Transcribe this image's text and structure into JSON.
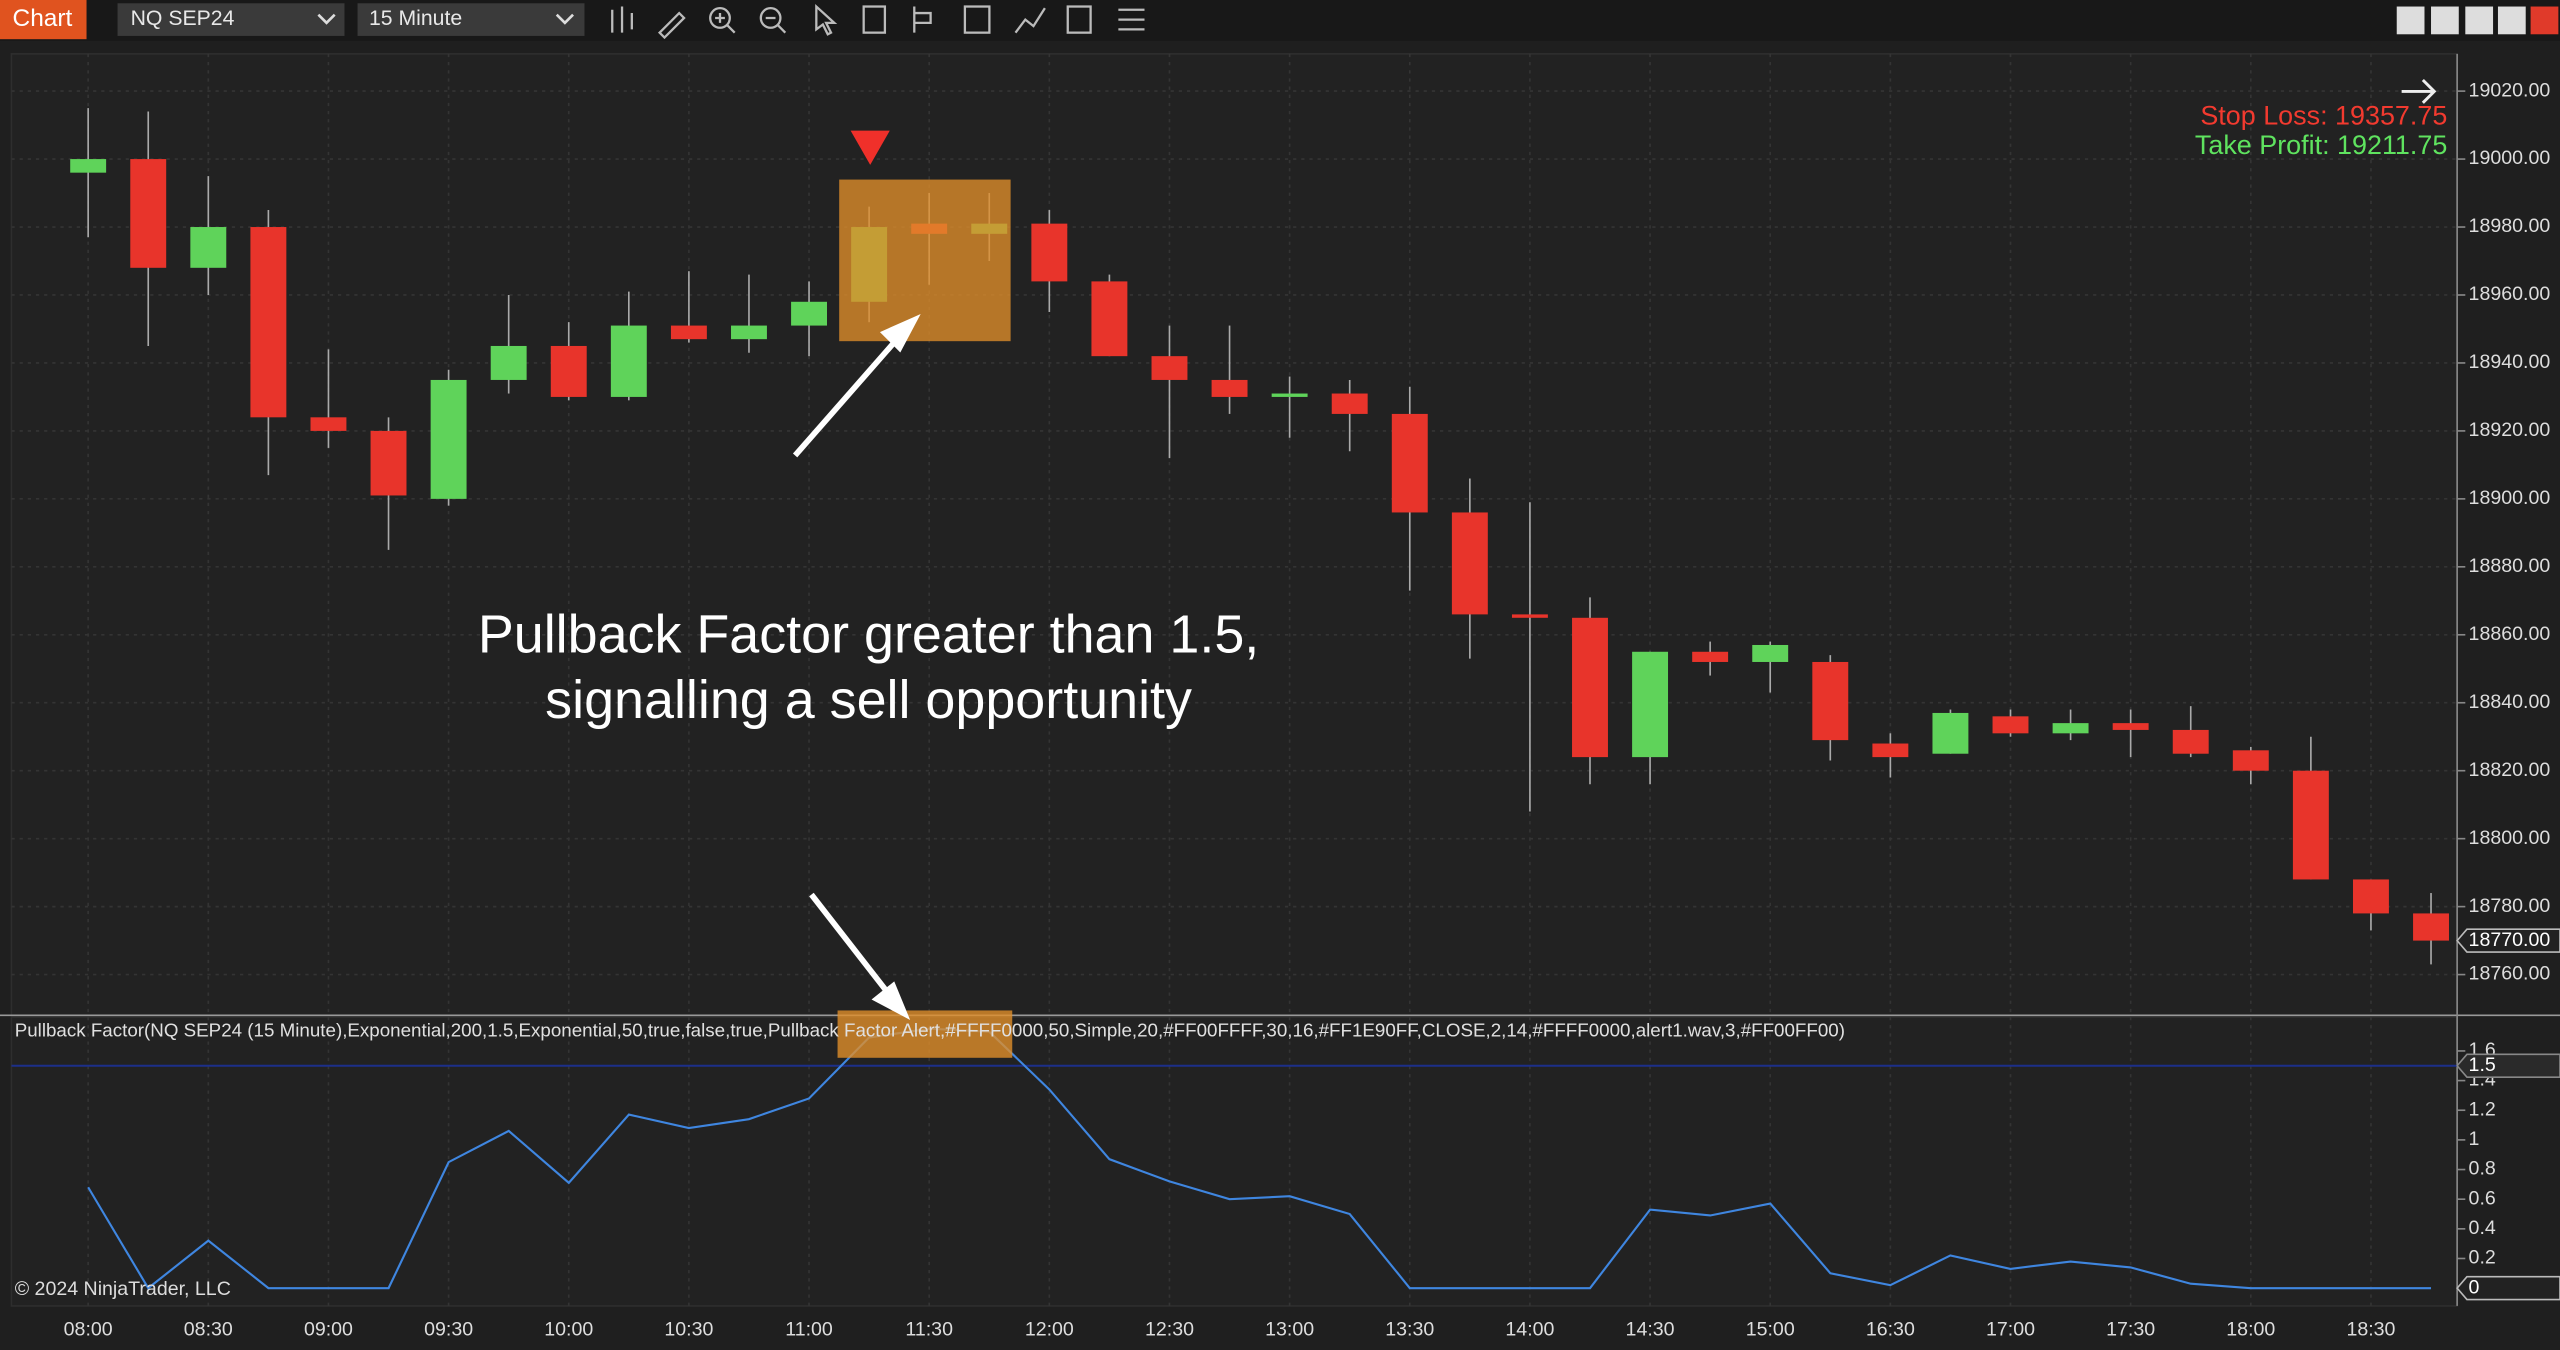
{
  "toolbar": {
    "tab": "Chart",
    "instrument": "NQ SEP24",
    "interval": "15 Minute"
  },
  "chart_data": [
    {
      "type": "candlestick",
      "categories": [
        "08:00",
        null,
        "08:30",
        null,
        "09:00",
        null,
        "09:30",
        null,
        "10:00",
        null,
        "10:30",
        null,
        "11:00",
        null,
        "11:30",
        null,
        "12:00",
        null,
        "12:30",
        null,
        "13:00",
        null,
        "13:30",
        null,
        "14:00",
        null,
        "14:30",
        null,
        "15:00",
        null,
        "16:30",
        null,
        "17:00",
        null,
        "17:30",
        null,
        "18:00",
        null,
        "18:30",
        null
      ],
      "open": [
        18996,
        19000,
        18968,
        18980,
        18924,
        18920,
        18900,
        18935,
        18945,
        18930,
        18951,
        18947,
        18951,
        18958,
        18981,
        18978,
        18981,
        18964,
        18942,
        18935,
        18930,
        18931,
        18925,
        18896,
        18866,
        18865,
        18824,
        18855,
        18852,
        18852,
        18828,
        18825,
        18836,
        18831,
        18834,
        18832,
        18826,
        18820,
        18788,
        18778
      ],
      "high": [
        19015,
        19014,
        18995,
        18985,
        18944,
        18924,
        18938,
        18960,
        18952,
        18961,
        18967,
        18966,
        18964,
        18986,
        18990,
        18990,
        18985,
        18966,
        18951,
        18951,
        18936,
        18935,
        18933,
        18906,
        18899,
        18871,
        18855,
        18858,
        18858,
        18854,
        18831,
        18838,
        18838,
        18838,
        18838,
        18839,
        18827,
        18830,
        18788,
        18784
      ],
      "low": [
        18977,
        18945,
        18960,
        18907,
        18915,
        18885,
        18898,
        18931,
        18929,
        18929,
        18946,
        18943,
        18942,
        18952,
        18963,
        18970,
        18955,
        18942,
        18912,
        18925,
        18918,
        18914,
        18873,
        18853,
        18808,
        18816,
        18816,
        18848,
        18843,
        18823,
        18818,
        18825,
        18830,
        18829,
        18824,
        18824,
        18816,
        18788,
        18773,
        18763
      ],
      "close": [
        19000,
        18968,
        18980,
        18924,
        18920,
        18901,
        18935,
        18945,
        18930,
        18951,
        18947,
        18951,
        18958,
        18980,
        18978,
        18981,
        18964,
        18942,
        18935,
        18930,
        18931,
        18925,
        18896,
        18866,
        18865,
        18824,
        18855,
        18852,
        18857,
        18829,
        18824,
        18837,
        18831,
        18834,
        18832,
        18825,
        18820,
        18788,
        18778,
        18770
      ],
      "up_color": "#5fd35a",
      "down_color": "#e8342b",
      "ylim": [
        18748,
        19030
      ],
      "yticks": [
        {
          "value": 19020,
          "label": "19020.00"
        },
        {
          "value": 19000,
          "label": "19000.00"
        },
        {
          "value": 18980,
          "label": "18980.00"
        },
        {
          "value": 18960,
          "label": "18960.00"
        },
        {
          "value": 18940,
          "label": "18940.00"
        },
        {
          "value": 18920,
          "label": "18920.00"
        },
        {
          "value": 18900,
          "label": "18900.00"
        },
        {
          "value": 18880,
          "label": "18880.00"
        },
        {
          "value": 18860,
          "label": "18860.00"
        },
        {
          "value": 18840,
          "label": "18840.00"
        },
        {
          "value": 18820,
          "label": "18820.00"
        },
        {
          "value": 18800,
          "label": "18800.00"
        },
        {
          "value": 18780,
          "label": "18780.00"
        },
        {
          "value": 18760,
          "label": "18760.00"
        }
      ],
      "current_price": {
        "value": 18770,
        "label": "18770.00"
      },
      "grid": true,
      "annotations": {
        "stop_loss": "Stop Loss: 19357.75",
        "take_profit": "Take Profit: 19211.75",
        "note": [
          "Pullback Factor greater than 1.5,",
          "signalling a sell opportunity"
        ]
      }
    },
    {
      "type": "line",
      "title": "Pullback Factor(NQ SEP24 (15 Minute),Exponential,200,1.5,Exponential,50,true,false,true,Pullback Factor Alert,#FFFF0000,50,Simple,20,#FF00FFFF,30,16,#FF1E90FF,CLOSE,2,14,#FFFF0000,alert1.wav,3,#FF00FF00)",
      "values": [
        0.68,
        0,
        0.32,
        0,
        0,
        0,
        0.85,
        1.06,
        0.71,
        1.17,
        1.08,
        1.14,
        1.28,
        1.69,
        1.75,
        1.73,
        1.34,
        0.87,
        0.72,
        0.6,
        0.62,
        0.5,
        0,
        0,
        0,
        0,
        0.53,
        0.49,
        0.57,
        0.1,
        0.02,
        0.22,
        0.13,
        0.18,
        0.14,
        0.03,
        0,
        0,
        0,
        0
      ],
      "color": "#3f86e0",
      "ylim": [
        -0.12,
        1.84
      ],
      "yticks": [
        0,
        0.2,
        0.4,
        0.6,
        0.8,
        1,
        1.2,
        1.4,
        1.6
      ],
      "threshold": 1.5,
      "threshold_color": "#1c2f8a"
    }
  ],
  "footer": "© 2024 NinjaTrader, LLC"
}
